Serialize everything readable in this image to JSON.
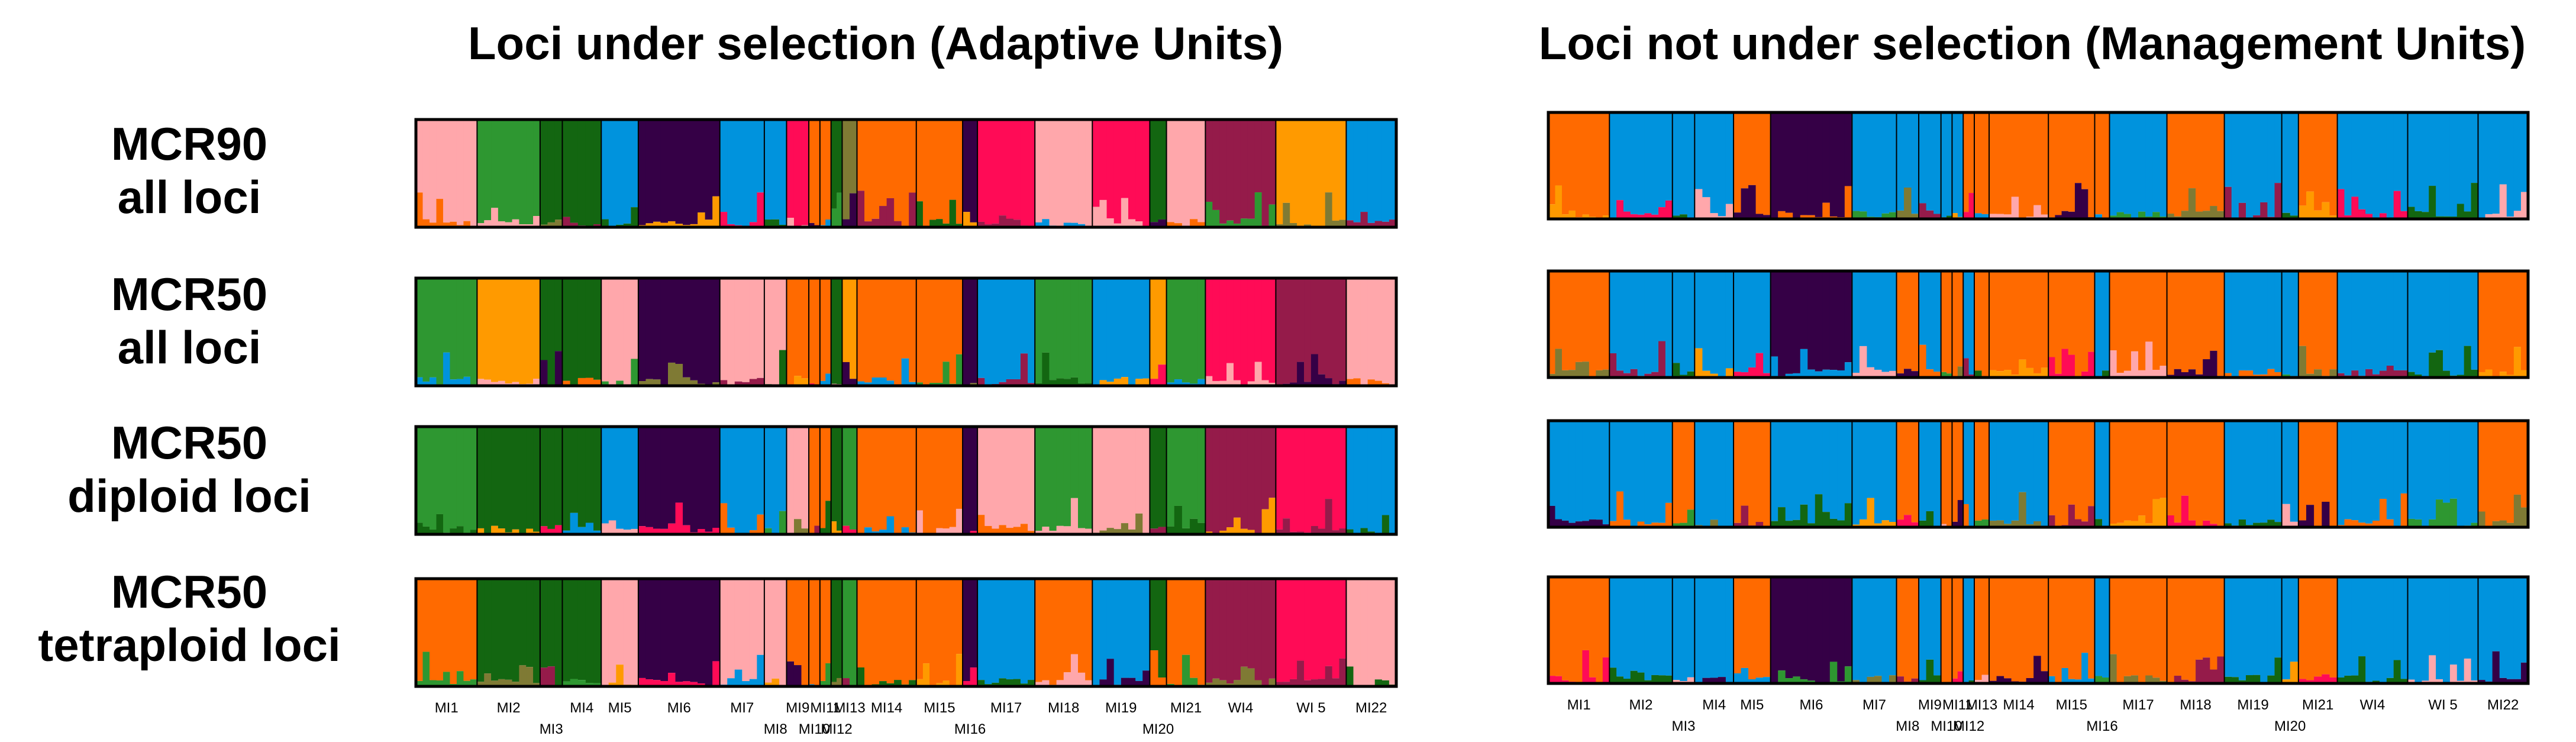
{
  "chart_data": {
    "type": "structure_barplot",
    "panels": [
      {
        "title": "Loci under selection (Adaptive Units)",
        "column": "left"
      },
      {
        "title": "Loci not under selection (Management Units)",
        "column": "right"
      }
    ],
    "rows": [
      {
        "label_line1": "MCR90",
        "label_line2": "all loci"
      },
      {
        "label_line1": "MCR50",
        "label_line2": "all loci"
      },
      {
        "label_line1": "MCR50",
        "label_line2": "diploid loci"
      },
      {
        "label_line1": "MCR50",
        "label_line2": "tetraploid loci"
      }
    ],
    "populations": [
      "MI1",
      "MI2",
      "MI3",
      "MI4",
      "MI5",
      "MI6",
      "MI7",
      "MI8",
      "MI9",
      "MI10",
      "MI11",
      "MI12",
      "MI13",
      "MI14",
      "MI15",
      "MI16",
      "MI17",
      "MI18",
      "MI19",
      "MI20",
      "MI21",
      "WI4",
      "WI 5",
      "MI22"
    ],
    "population_label_rows": [
      "upper",
      "upper",
      "lower",
      "upper",
      "upper",
      "upper",
      "upper",
      "lower",
      "upper",
      "lower",
      "upper",
      "lower",
      "upper",
      "upper",
      "upper",
      "lower",
      "upper",
      "upper",
      "upper",
      "lower",
      "upper",
      "upper",
      "upper",
      "upper"
    ],
    "population_sizes": [
      3.3,
      3.4,
      1.2,
      2.1,
      2.0,
      4.4,
      2.4,
      1.2,
      1.2,
      0.6,
      0.6,
      0.6,
      0.8,
      3.2,
      2.5,
      0.8,
      3.1,
      3.1,
      3.1,
      0.9,
      2.1,
      3.8,
      3.8,
      2.7
    ],
    "cluster_colors": {
      "orange": "#ff6a00",
      "blue": "#0093dd",
      "dark_purple": "#350046",
      "dark_green": "#136611",
      "green": "#2e9731",
      "light_pink": "#ffa7ab",
      "hot_pink": "#ff0b56",
      "maroon": "#951b4a",
      "amber": "#ff9a00",
      "olive": "#7f7a34",
      "yellow": "#f2f20f"
    },
    "adaptive_dominant_cluster": [
      [
        "light_pink",
        "green",
        "dark_green",
        "dark_green",
        "blue",
        "dark_purple",
        "blue",
        "blue",
        "hot_pink",
        "orange",
        "orange",
        "dark_green",
        "olive",
        "orange",
        "orange",
        "dark_purple",
        "hot_pink",
        "light_pink",
        "hot_pink",
        "dark_green",
        "light_pink",
        "maroon",
        "amber",
        "blue"
      ],
      [
        "green",
        "amber",
        "dark_green",
        "dark_green",
        "light_pink",
        "dark_purple",
        "light_pink",
        "light_pink",
        "orange",
        "orange",
        "orange",
        "dark_green",
        "amber",
        "orange",
        "orange",
        "dark_purple",
        "blue",
        "green",
        "blue",
        "amber",
        "green",
        "hot_pink",
        "maroon",
        "light_pink"
      ],
      [
        "green",
        "dark_green",
        "dark_green",
        "dark_green",
        "blue",
        "dark_purple",
        "blue",
        "blue",
        "light_pink",
        "orange",
        "orange",
        "dark_green",
        "green",
        "orange",
        "orange",
        "dark_purple",
        "light_pink",
        "green",
        "light_pink",
        "dark_green",
        "green",
        "maroon",
        "hot_pink",
        "blue"
      ],
      [
        "orange",
        "dark_green",
        "dark_green",
        "dark_green",
        "light_pink",
        "dark_purple",
        "light_pink",
        "light_pink",
        "orange",
        "orange",
        "orange",
        "dark_green",
        "green",
        "orange",
        "orange",
        "dark_purple",
        "blue",
        "orange",
        "blue",
        "dark_green",
        "orange",
        "maroon",
        "hot_pink",
        "light_pink"
      ]
    ],
    "neutral_dominant_cluster": [
      [
        "orange",
        "blue",
        "blue",
        "blue",
        "orange",
        "dark_purple",
        "blue",
        "blue",
        "blue",
        "blue",
        "blue",
        "orange",
        "orange",
        "orange",
        "orange",
        "orange",
        "blue",
        "orange",
        "blue",
        "blue",
        "orange",
        "blue",
        "blue",
        "blue"
      ],
      [
        "orange",
        "blue",
        "blue",
        "blue",
        "blue",
        "dark_purple",
        "blue",
        "orange",
        "blue",
        "orange",
        "orange",
        "blue",
        "orange",
        "orange",
        "orange",
        "blue",
        "orange",
        "orange",
        "blue",
        "blue",
        "orange",
        "blue",
        "blue",
        "orange"
      ],
      [
        "blue",
        "blue",
        "orange",
        "blue",
        "orange",
        "blue",
        "blue",
        "orange",
        "blue",
        "orange",
        "orange",
        "blue",
        "orange",
        "blue",
        "orange",
        "blue",
        "orange",
        "orange",
        "blue",
        "blue",
        "orange",
        "blue",
        "blue",
        "orange"
      ],
      [
        "orange",
        "blue",
        "blue",
        "blue",
        "orange",
        "dark_purple",
        "blue",
        "orange",
        "blue",
        "orange",
        "orange",
        "blue",
        "orange",
        "orange",
        "orange",
        "blue",
        "orange",
        "orange",
        "blue",
        "blue",
        "orange",
        "blue",
        "blue",
        "blue"
      ]
    ]
  }
}
